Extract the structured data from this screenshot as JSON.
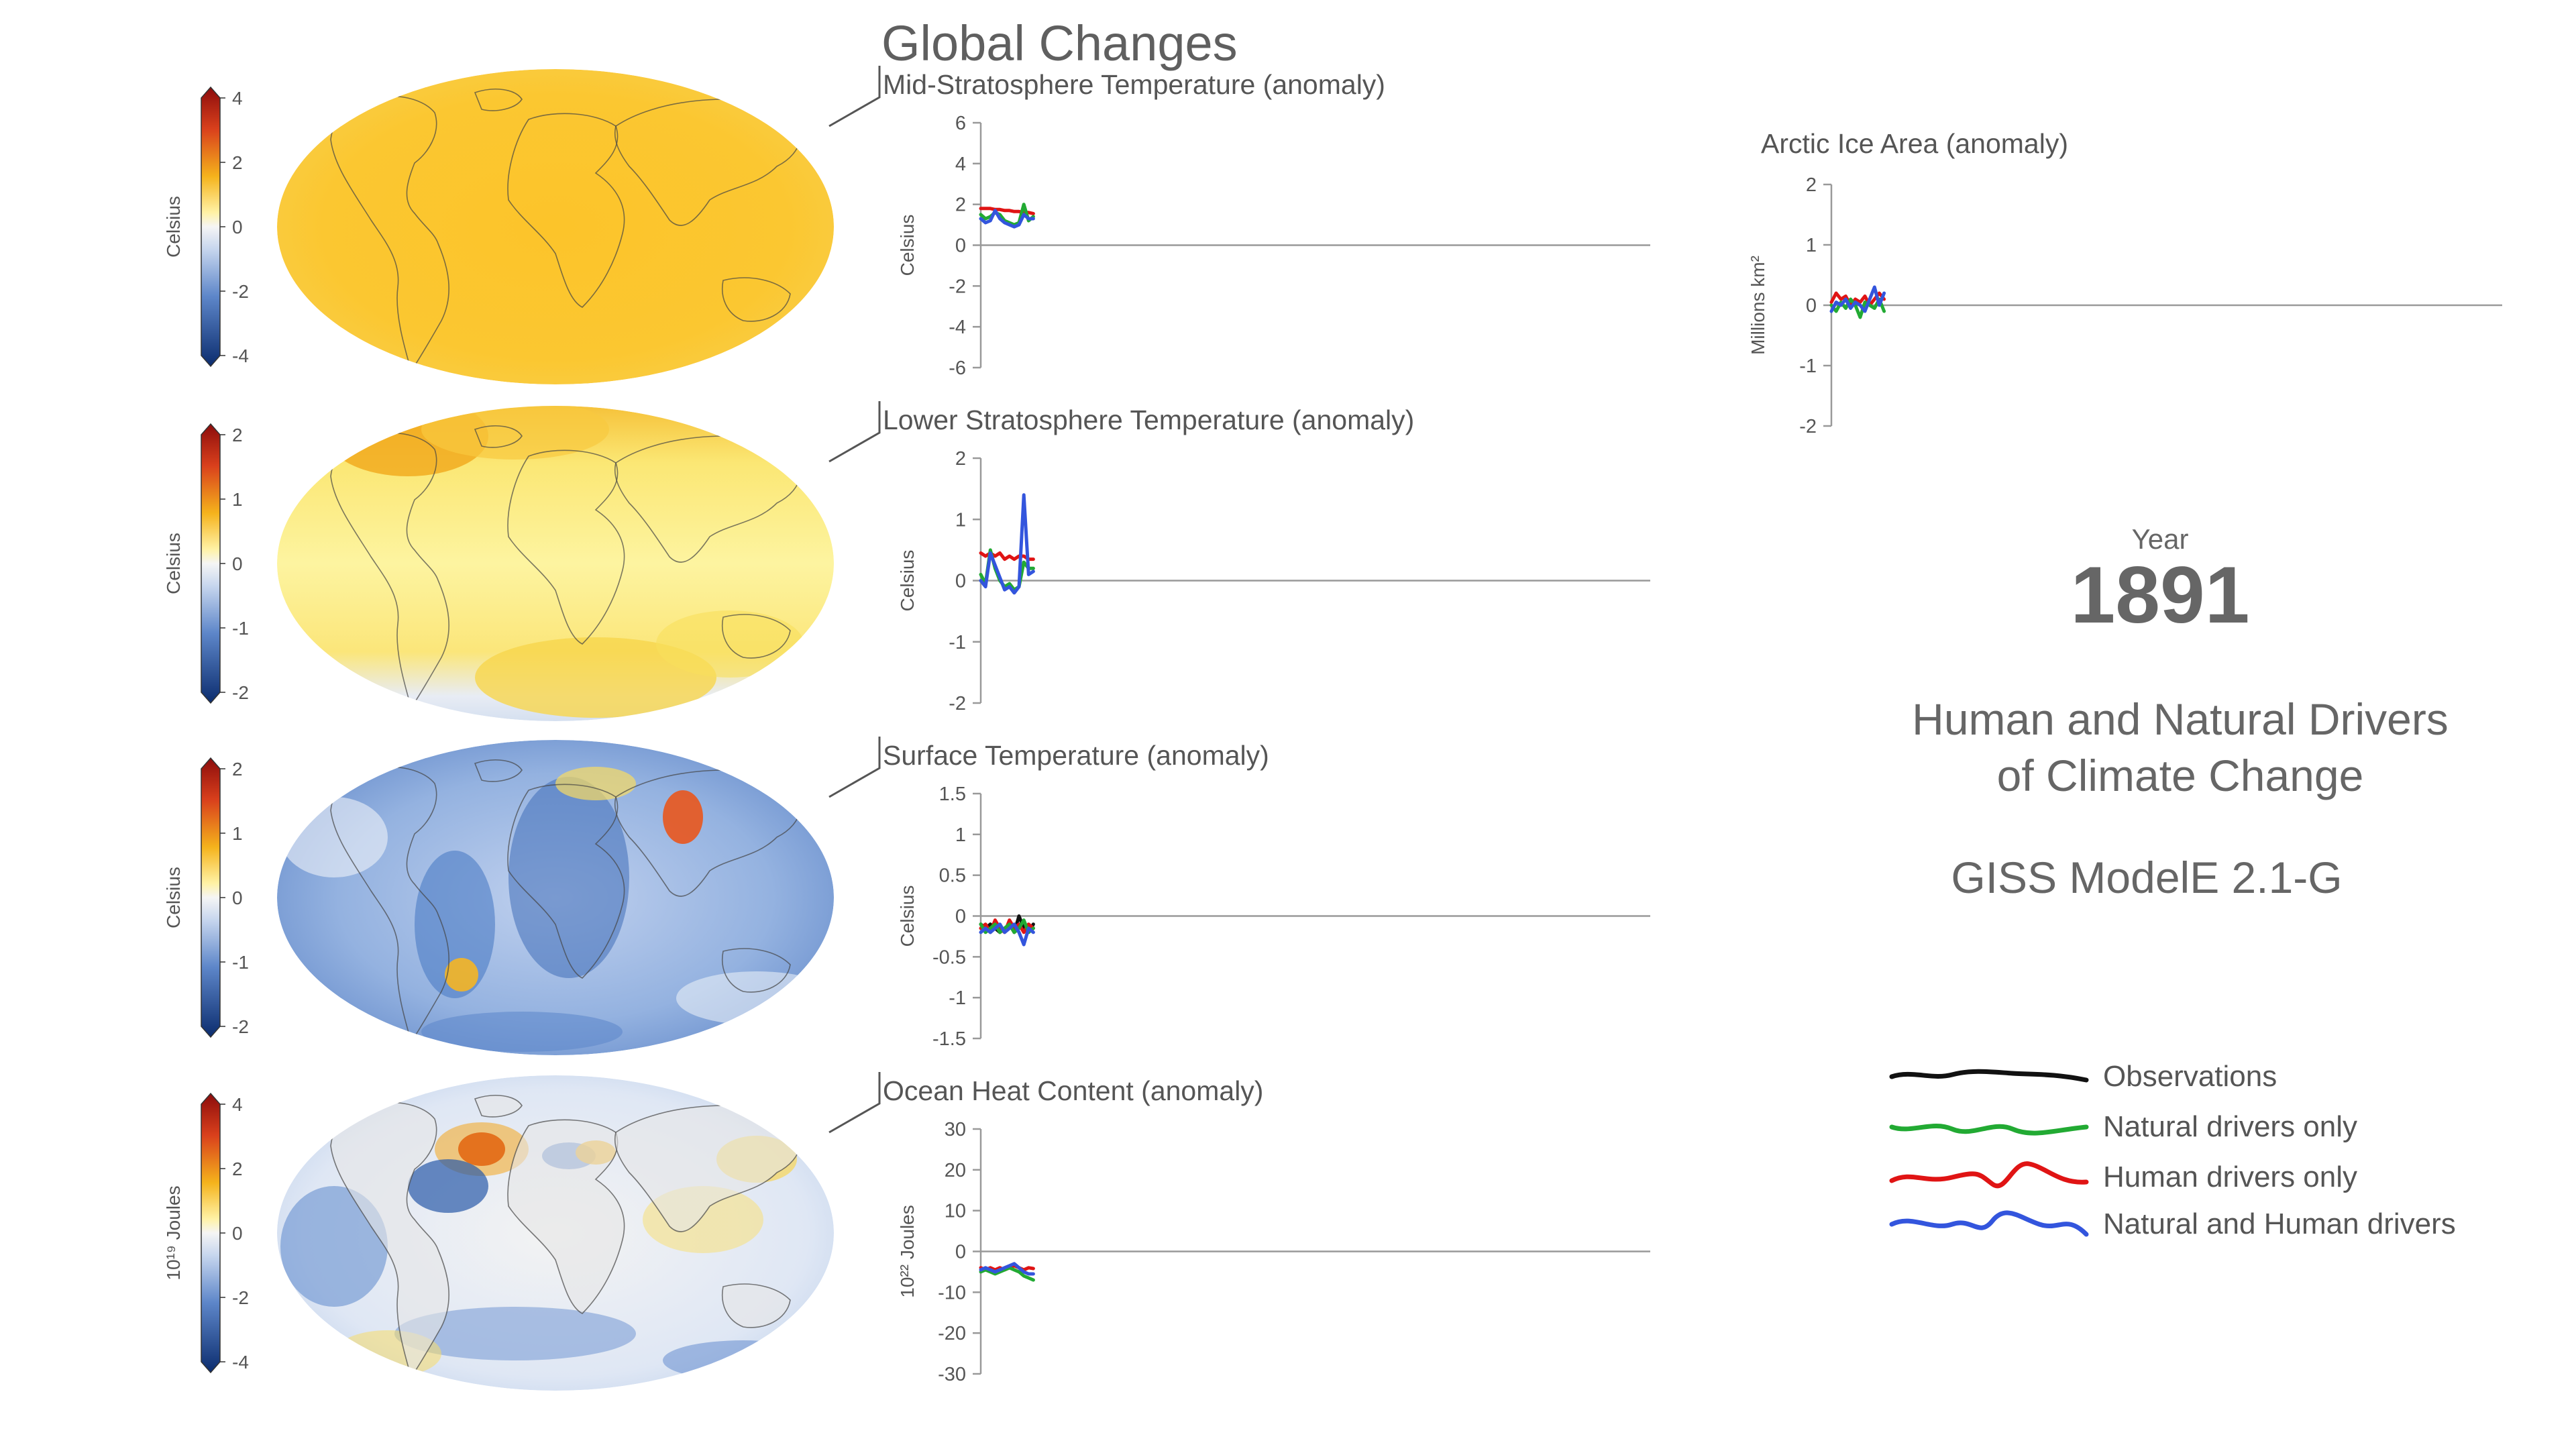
{
  "title": "Global Changes",
  "year_label": "Year",
  "year": "1891",
  "info": {
    "line1": "Human and Natural Drivers",
    "line2": "of Climate Change",
    "model": "GISS ModelE 2.1-G"
  },
  "colors": {
    "observations": "#111111",
    "natural": "#22aa33",
    "human": "#e01414",
    "both": "#3355dd",
    "axis": "#999999",
    "text": "#555555"
  },
  "legend": [
    {
      "label": "Observations",
      "color": "#111111",
      "icon": "black-wavy-line"
    },
    {
      "label": "Natural drivers only",
      "color": "#22aa33",
      "icon": "green-wavy-line"
    },
    {
      "label": "Human drivers only",
      "color": "#e01414",
      "icon": "red-wavy-line"
    },
    {
      "label": "Natural and Human drivers",
      "color": "#3355dd",
      "icon": "blue-wavy-line"
    }
  ],
  "maps": [
    {
      "name": "mid-stratosphere-map",
      "pattern": "warm-uniform",
      "colorbar": {
        "unit": "Celsius",
        "ticks": [
          "4",
          "2",
          "0",
          "-2",
          "-4"
        ]
      }
    },
    {
      "name": "lower-stratosphere-map",
      "pattern": "warm-pale",
      "colorbar": {
        "unit": "Celsius",
        "ticks": [
          "2",
          "1",
          "0",
          "-1",
          "-2"
        ]
      }
    },
    {
      "name": "surface-temperature-map",
      "pattern": "cool-blue",
      "colorbar": {
        "unit": "Celsius",
        "ticks": [
          "2",
          "1",
          "0",
          "-1",
          "-2"
        ]
      }
    },
    {
      "name": "ocean-heat-map",
      "pattern": "mixed",
      "colorbar": {
        "unit": "10¹⁹ Joules",
        "ticks": [
          "4",
          "2",
          "0",
          "-2",
          "-4"
        ]
      }
    }
  ],
  "chart_data": [
    {
      "type": "line",
      "title": "Mid-Stratosphere Temperature (anomaly)",
      "ylabel": "Celsius",
      "ylim": [
        -6,
        6
      ],
      "yticks": [
        "6",
        "4",
        "2",
        "0",
        "-2",
        "-4",
        "-6"
      ],
      "x": [
        1880,
        1881,
        1882,
        1883,
        1884,
        1885,
        1886,
        1887,
        1888,
        1889,
        1890,
        1891
      ],
      "series": [
        {
          "name": "Human drivers only",
          "color": "#e01414",
          "values": [
            1.8,
            1.8,
            1.8,
            1.75,
            1.75,
            1.7,
            1.7,
            1.65,
            1.65,
            1.6,
            1.6,
            1.55
          ]
        },
        {
          "name": "Natural drivers only",
          "color": "#22aa33",
          "values": [
            1.5,
            1.3,
            1.4,
            1.6,
            1.5,
            1.2,
            1.1,
            1.0,
            1.1,
            2.0,
            1.2,
            1.4
          ]
        },
        {
          "name": "Natural and Human drivers",
          "color": "#3355dd",
          "values": [
            1.3,
            1.1,
            1.2,
            1.7,
            1.3,
            1.1,
            1.0,
            0.9,
            1.0,
            1.5,
            1.3,
            1.3
          ]
        }
      ]
    },
    {
      "type": "line",
      "title": "Lower Stratosphere Temperature (anomaly)",
      "ylabel": "Celsius",
      "ylim": [
        -2,
        2
      ],
      "yticks": [
        "2",
        "1",
        "0",
        "-1",
        "-2"
      ],
      "x": [
        1880,
        1881,
        1882,
        1883,
        1884,
        1885,
        1886,
        1887,
        1888,
        1889,
        1890,
        1891
      ],
      "series": [
        {
          "name": "Human drivers only",
          "color": "#e01414",
          "values": [
            0.45,
            0.4,
            0.45,
            0.4,
            0.45,
            0.35,
            0.4,
            0.35,
            0.4,
            0.4,
            0.35,
            0.35
          ]
        },
        {
          "name": "Natural drivers only",
          "color": "#22aa33",
          "values": [
            0.1,
            -0.05,
            0.5,
            0.2,
            0.0,
            -0.1,
            -0.05,
            -0.15,
            -0.1,
            0.3,
            0.2,
            0.2
          ]
        },
        {
          "name": "Natural and Human drivers",
          "color": "#3355dd",
          "values": [
            0.0,
            -0.1,
            0.45,
            0.25,
            0.05,
            -0.15,
            -0.1,
            -0.2,
            -0.1,
            1.4,
            0.1,
            0.15
          ]
        }
      ]
    },
    {
      "type": "line",
      "title": "Surface Temperature (anomaly)",
      "ylabel": "Celsius",
      "ylim": [
        -1.5,
        1.5
      ],
      "yticks": [
        "1.5",
        "1",
        "0.5",
        "0",
        "-0.5",
        "-1",
        "-1.5"
      ],
      "x": [
        1880,
        1881,
        1882,
        1883,
        1884,
        1885,
        1886,
        1887,
        1888,
        1889,
        1890,
        1891
      ],
      "series": [
        {
          "name": "Observations",
          "color": "#111111",
          "values": [
            -0.1,
            -0.15,
            -0.1,
            -0.15,
            -0.2,
            -0.15,
            -0.1,
            -0.2,
            0.0,
            -0.15,
            -0.2,
            -0.1
          ]
        },
        {
          "name": "Human drivers only",
          "color": "#e01414",
          "values": [
            -0.15,
            -0.1,
            -0.2,
            -0.05,
            -0.15,
            -0.2,
            -0.05,
            -0.15,
            -0.1,
            -0.2,
            -0.1,
            -0.15
          ]
        },
        {
          "name": "Natural drivers only",
          "color": "#22aa33",
          "values": [
            -0.1,
            -0.2,
            -0.15,
            -0.1,
            -0.2,
            -0.15,
            -0.1,
            -0.2,
            -0.15,
            -0.05,
            -0.2,
            -0.15
          ]
        },
        {
          "name": "Natural and Human drivers",
          "color": "#3355dd",
          "values": [
            -0.2,
            -0.15,
            -0.2,
            -0.15,
            -0.1,
            -0.2,
            -0.15,
            -0.1,
            -0.2,
            -0.35,
            -0.15,
            -0.2
          ]
        }
      ]
    },
    {
      "type": "line",
      "title": "Ocean Heat Content (anomaly)",
      "ylabel": "10²² Joules",
      "ylim": [
        -30,
        30
      ],
      "yticks": [
        "30",
        "20",
        "10",
        "0",
        "-10",
        "-20",
        "-30"
      ],
      "x": [
        1880,
        1881,
        1882,
        1883,
        1884,
        1885,
        1886,
        1887,
        1888,
        1889,
        1890,
        1891
      ],
      "series": [
        {
          "name": "Human drivers only",
          "color": "#e01414",
          "values": [
            -4,
            -4.5,
            -4,
            -4.5,
            -4,
            -4.5,
            -4,
            -3.5,
            -4,
            -4.5,
            -4,
            -4.2
          ]
        },
        {
          "name": "Natural drivers only",
          "color": "#22aa33",
          "values": [
            -5,
            -4.5,
            -5,
            -5.5,
            -5,
            -4.5,
            -4,
            -4.5,
            -5,
            -6,
            -6.5,
            -7
          ]
        },
        {
          "name": "Natural and Human drivers",
          "color": "#3355dd",
          "values": [
            -4.5,
            -4,
            -4.5,
            -5,
            -4.5,
            -4,
            -3.5,
            -3,
            -4,
            -5,
            -5.5,
            -5.5
          ]
        }
      ]
    },
    {
      "type": "line",
      "title": "Arctic Ice Area (anomaly)",
      "ylabel": "Millions km²",
      "ylim": [
        -2,
        2
      ],
      "yticks": [
        "2",
        "1",
        "0",
        "-1",
        "-2"
      ],
      "x": [
        1880,
        1881,
        1882,
        1883,
        1884,
        1885,
        1886,
        1887,
        1888,
        1889,
        1890,
        1891
      ],
      "series": [
        {
          "name": "Human drivers only",
          "color": "#e01414",
          "values": [
            0.05,
            0.2,
            0.1,
            0.15,
            0.0,
            0.1,
            0.05,
            0.15,
            0.0,
            0.1,
            0.2,
            0.1
          ]
        },
        {
          "name": "Natural drivers only",
          "color": "#22aa33",
          "values": [
            0.0,
            -0.1,
            0.05,
            -0.05,
            0.1,
            0.0,
            -0.2,
            0.05,
            0.0,
            -0.05,
            0.1,
            -0.1
          ]
        },
        {
          "name": "Natural and Human drivers",
          "color": "#3355dd",
          "values": [
            -0.1,
            0.05,
            0.0,
            0.1,
            -0.05,
            0.05,
            0.0,
            -0.1,
            0.1,
            0.3,
            0.0,
            0.2
          ]
        }
      ]
    }
  ]
}
